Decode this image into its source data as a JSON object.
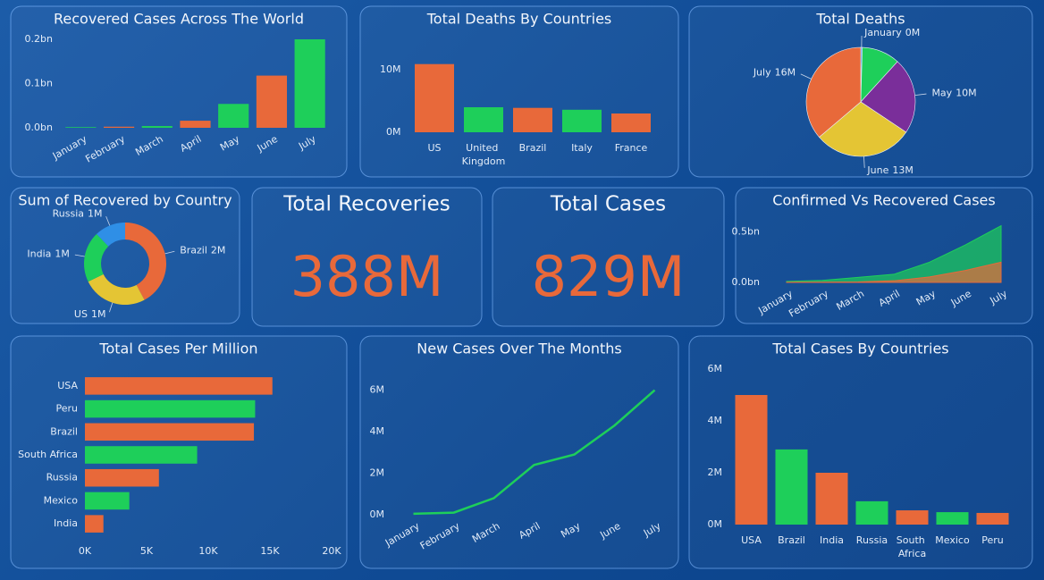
{
  "chart_data": [
    {
      "type": "bar",
      "title": "Recovered Cases Across The World",
      "categories": [
        "January",
        "February",
        "March",
        "April",
        "May",
        "June",
        "July"
      ],
      "values": [
        1500000,
        2500000,
        4000000,
        16000000,
        54000000,
        118000000,
        200000000
      ],
      "colors": [
        "#1ecf5a",
        "#e8693a",
        "#1ecf5a",
        "#e8693a",
        "#1ecf5a",
        "#e8693a",
        "#1ecf5a"
      ],
      "ylim": [
        0,
        200000000
      ],
      "yticks": [
        {
          "value": 0,
          "label": "0.0bn"
        },
        {
          "value": 100000000,
          "label": "0.1bn"
        },
        {
          "value": 200000000,
          "label": "0.2bn"
        }
      ]
    },
    {
      "type": "bar",
      "title": "Total Deaths By Countries",
      "categories": [
        "US",
        "United Kingdom",
        "Brazil",
        "Italy",
        "France"
      ],
      "values": [
        10900000,
        4000000,
        3900000,
        3600000,
        3000000
      ],
      "colors": [
        "#e8693a",
        "#1ecf5a",
        "#e8693a",
        "#1ecf5a",
        "#e8693a"
      ],
      "ylim": [
        0,
        12000000
      ],
      "yticks": [
        {
          "value": 0,
          "label": "0M"
        },
        {
          "value": 10000000,
          "label": "10M"
        }
      ]
    },
    {
      "type": "pie",
      "title": "Total Deaths",
      "categories": [
        "January",
        null,
        "May",
        "June",
        "July"
      ],
      "values": [
        200000,
        5000000,
        10000000,
        13000000,
        16000000
      ],
      "value_labels": [
        "0M",
        null,
        "10M",
        "13M",
        "16M"
      ],
      "colors": [
        "#2f8fe6",
        "#1ecf5a",
        "#7a2e9a",
        "#e4c534",
        "#e8693a"
      ]
    },
    {
      "type": "donut",
      "title": "Sum of Recovered by Country",
      "categories": [
        "Brazil",
        "US",
        "India",
        "Russia"
      ],
      "values": [
        1900000,
        1150000,
        900000,
        550000
      ],
      "value_labels": [
        "2M",
        "1M",
        "1M",
        "1M"
      ],
      "colors": [
        "#e8693a",
        "#e4c534",
        "#1ecf5a",
        "#2f8fe6"
      ]
    },
    {
      "type": "kpi",
      "title": "Total Recoveries",
      "values": [
        388000000
      ],
      "value_labels": [
        "388M"
      ],
      "color": "#e8693a"
    },
    {
      "type": "kpi",
      "title": "Total Cases",
      "values": [
        829000000
      ],
      "value_labels": [
        "829M"
      ],
      "color": "#e8693a"
    },
    {
      "type": "area",
      "title": "Confirmed Vs Recovered Cases",
      "categories": [
        "January",
        "February",
        "March",
        "April",
        "May",
        "June",
        "July"
      ],
      "series": [
        {
          "color": "#1ecf5a",
          "values": [
            10000000,
            20000000,
            50000000,
            80000000,
            200000000,
            370000000,
            560000000
          ]
        },
        {
          "color": "#e8693a",
          "values": [
            1500000,
            2500000,
            4000000,
            16000000,
            54000000,
            118000000,
            200000000
          ]
        }
      ],
      "ylim": [
        0,
        600000000
      ],
      "yticks": [
        {
          "value": 0,
          "label": "0.0bn"
        },
        {
          "value": 500000000,
          "label": "0.5bn"
        }
      ]
    },
    {
      "type": "hbar",
      "title": "Total Cases Per Million",
      "categories": [
        "USA",
        "Peru",
        "Brazil",
        "South Africa",
        "Russia",
        "Mexico",
        "India"
      ],
      "values": [
        15200,
        13800,
        13700,
        9100,
        6000,
        3600,
        1500
      ],
      "colors": [
        "#e8693a",
        "#1ecf5a",
        "#e8693a",
        "#1ecf5a",
        "#e8693a",
        "#1ecf5a",
        "#e8693a"
      ],
      "xlim": [
        0,
        20000
      ],
      "xticks": [
        {
          "value": 0,
          "label": "0K"
        },
        {
          "value": 5000,
          "label": "5K"
        },
        {
          "value": 10000,
          "label": "10K"
        },
        {
          "value": 15000,
          "label": "15K"
        },
        {
          "value": 20000,
          "label": "20K"
        }
      ]
    },
    {
      "type": "line",
      "title": "New Cases Over The Months",
      "categories": [
        "January",
        "February",
        "March",
        "April",
        "May",
        "June",
        "July"
      ],
      "values": [
        50000,
        100000,
        800000,
        2400000,
        2900000,
        4300000,
        6000000
      ],
      "color": "#1ecf5a",
      "ylim": [
        0,
        6500000
      ],
      "yticks": [
        {
          "value": 0,
          "label": "0M"
        },
        {
          "value": 2000000,
          "label": "2M"
        },
        {
          "value": 4000000,
          "label": "4M"
        },
        {
          "value": 6000000,
          "label": "6M"
        }
      ]
    },
    {
      "type": "bar",
      "title": "Total Cases By Countries",
      "categories": [
        "USA",
        "Brazil",
        "India",
        "Russia",
        "South Africa",
        "Mexico",
        "Peru"
      ],
      "values": [
        5000000,
        2900000,
        2000000,
        900000,
        550000,
        480000,
        450000
      ],
      "colors": [
        "#e8693a",
        "#1ecf5a",
        "#e8693a",
        "#1ecf5a",
        "#e8693a",
        "#1ecf5a",
        "#e8693a"
      ],
      "ylim": [
        0,
        6000000
      ],
      "yticks": [
        {
          "value": 0,
          "label": "0M"
        },
        {
          "value": 2000000,
          "label": "2M"
        },
        {
          "value": 4000000,
          "label": "4M"
        },
        {
          "value": 6000000,
          "label": "6M"
        }
      ]
    }
  ]
}
